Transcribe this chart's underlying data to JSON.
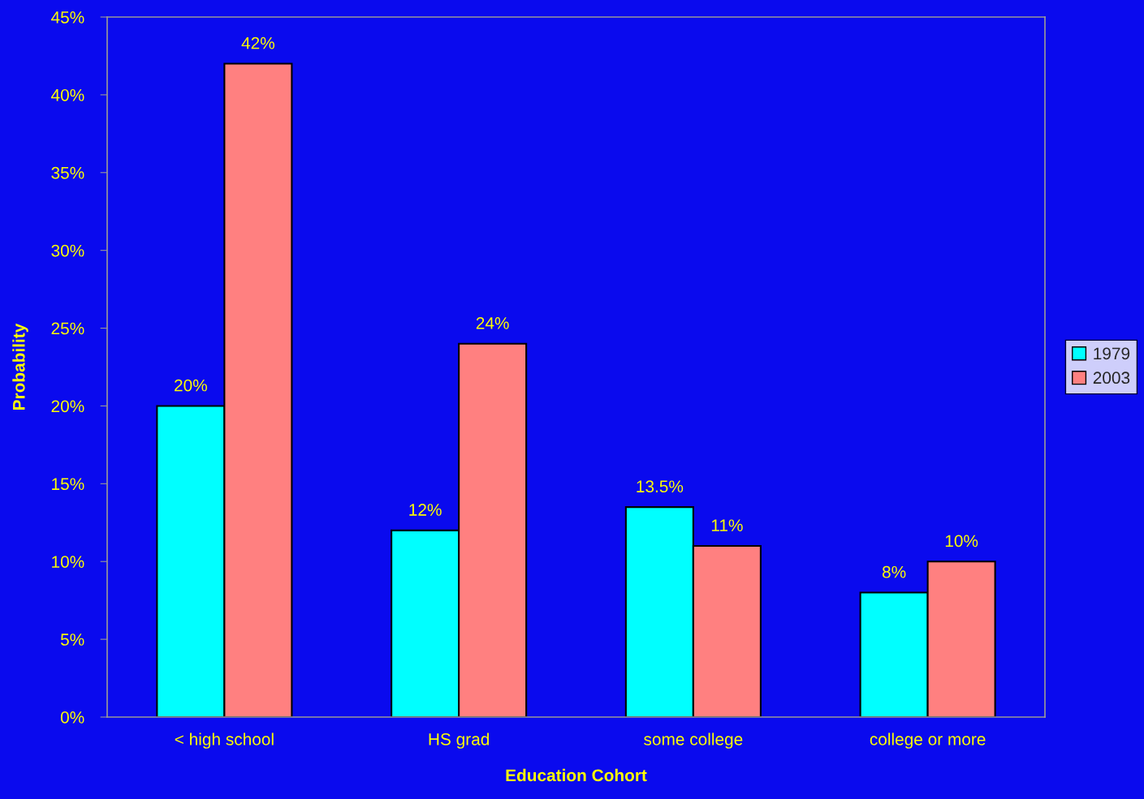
{
  "chart_data": {
    "type": "bar",
    "xlabel": "Education Cohort",
    "ylabel": "Probability",
    "categories": [
      "< high school",
      "HS grad",
      "some college",
      "college or more"
    ],
    "series": [
      {
        "name": "1979",
        "color": "#00ffff",
        "values": [
          20,
          12,
          13.5,
          8
        ],
        "value_labels": [
          "20%",
          "12%",
          "13.5%",
          "8%"
        ]
      },
      {
        "name": "2003",
        "color": "#ff8080",
        "values": [
          42,
          24,
          11,
          10
        ],
        "value_labels": [
          "42%",
          "24%",
          "11%",
          "10%"
        ]
      }
    ],
    "ylim": [
      0,
      45
    ],
    "yticks": [
      {
        "value": 0,
        "label": "0%"
      },
      {
        "value": 5,
        "label": "5%"
      },
      {
        "value": 10,
        "label": "10%"
      },
      {
        "value": 15,
        "label": "15%"
      },
      {
        "value": 20,
        "label": "20%"
      },
      {
        "value": 25,
        "label": "25%"
      },
      {
        "value": 30,
        "label": "30%"
      },
      {
        "value": 35,
        "label": "35%"
      },
      {
        "value": 40,
        "label": "40%"
      },
      {
        "value": 45,
        "label": "45%"
      }
    ],
    "grid": false,
    "legend": "right"
  }
}
